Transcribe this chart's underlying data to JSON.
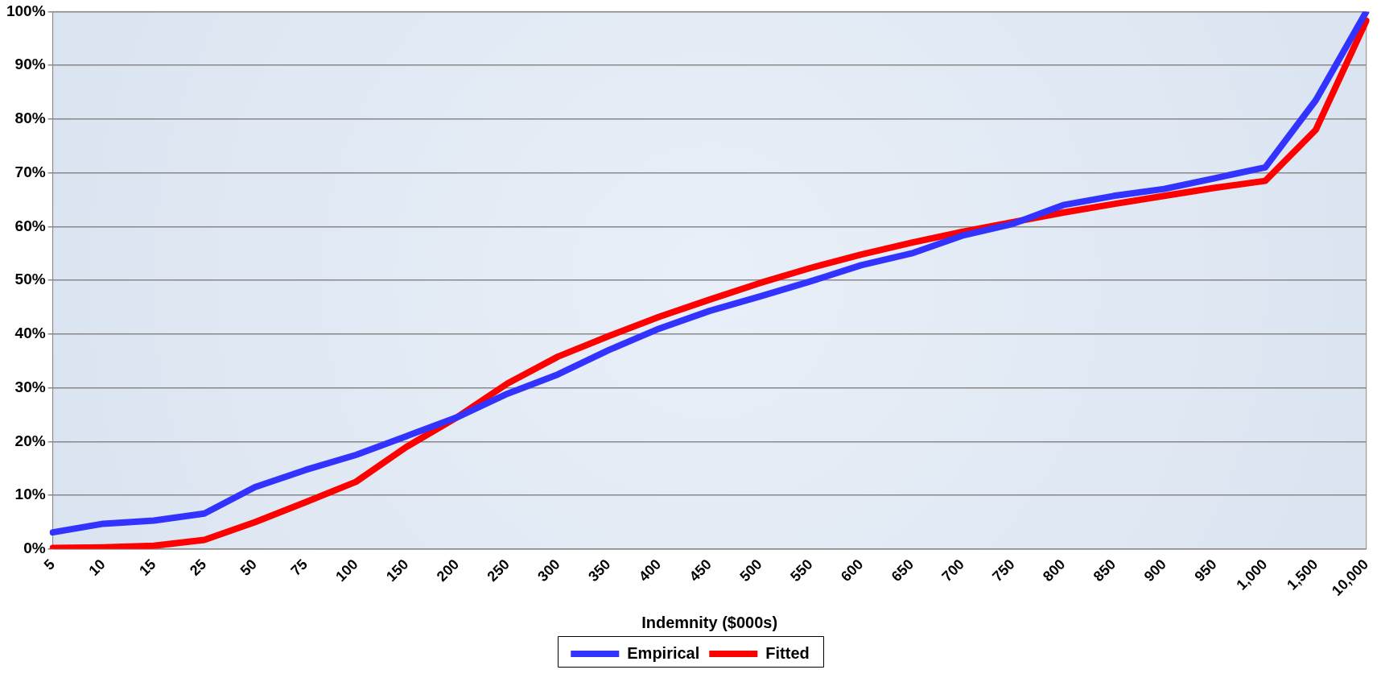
{
  "chart_data": {
    "type": "line",
    "xlabel": "Indemnity ($000s)",
    "categories": [
      "5",
      "10",
      "15",
      "25",
      "50",
      "75",
      "100",
      "150",
      "200",
      "250",
      "300",
      "350",
      "400",
      "450",
      "500",
      "550",
      "600",
      "650",
      "700",
      "750",
      "800",
      "850",
      "900",
      "950",
      "1,000",
      "1,500",
      "10,000"
    ],
    "series": [
      {
        "name": "Empirical",
        "color": "#3333ff",
        "values": [
          3.1,
          4.7,
          5.3,
          6.6,
          11.5,
          14.7,
          17.5,
          21,
          24.5,
          28.9,
          32.5,
          37,
          41,
          44.3,
          47,
          49.8,
          52.8,
          55,
          58.3,
          60.5,
          64,
          65.7,
          67,
          69,
          71,
          83.5,
          100
        ]
      },
      {
        "name": "Fitted",
        "color": "#ff0000",
        "values": [
          0.2,
          0.3,
          0.6,
          1.7,
          5,
          8.7,
          12.5,
          19,
          24.5,
          30.8,
          35.8,
          39.6,
          43.2,
          46.4,
          49.5,
          52.3,
          54.8,
          57,
          59,
          60.8,
          62.6,
          64.2,
          65.7,
          67.2,
          68.5,
          78,
          98.3
        ]
      }
    ],
    "ylim": [
      0,
      100
    ],
    "yticks": [
      {
        "value": 0,
        "label": "0%"
      },
      {
        "value": 10,
        "label": "10%"
      },
      {
        "value": 20,
        "label": "20%"
      },
      {
        "value": 30,
        "label": "30%"
      },
      {
        "value": 40,
        "label": "40%"
      },
      {
        "value": 50,
        "label": "50%"
      },
      {
        "value": 60,
        "label": "60%"
      },
      {
        "value": 70,
        "label": "70%"
      },
      {
        "value": 80,
        "label": "80%"
      },
      {
        "value": 90,
        "label": "90%"
      },
      {
        "value": 100,
        "label": "100%"
      }
    ],
    "grid": "y",
    "legend": "bottom",
    "marker": "none",
    "line_style": "solid"
  }
}
